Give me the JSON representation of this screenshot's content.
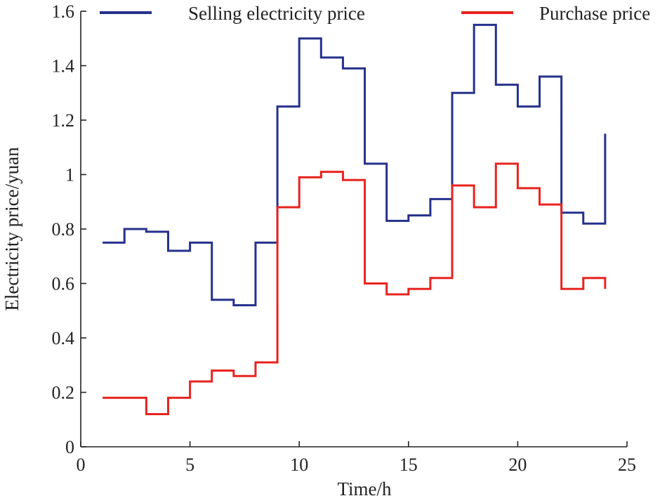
{
  "chart_data": {
    "type": "line",
    "step": true,
    "title": "",
    "xlabel": "Time/h",
    "ylabel": "Electricity price/yuan",
    "xlim": [
      0,
      25
    ],
    "ylim": [
      0,
      1.6
    ],
    "xticks": [
      0,
      5,
      10,
      15,
      20,
      25
    ],
    "yticks": [
      0,
      0.2,
      0.4,
      0.6,
      0.8,
      1,
      1.2,
      1.4,
      1.6
    ],
    "xtick_labels": [
      "0",
      "5",
      "10",
      "15",
      "20",
      "25"
    ],
    "ytick_labels": [
      "0",
      "0.2",
      "0.4",
      "0.6",
      "0.8",
      "1",
      "1.2",
      "1.4",
      "1.6"
    ],
    "grid": false,
    "legend_position": "top",
    "x": [
      1,
      2,
      3,
      4,
      5,
      6,
      7,
      8,
      9,
      10,
      11,
      12,
      13,
      14,
      15,
      16,
      17,
      18,
      19,
      20,
      21,
      22,
      23,
      24
    ],
    "series": [
      {
        "name": "Selling electricity price",
        "color": "#25318c",
        "values": [
          0.75,
          0.8,
          0.79,
          0.72,
          0.75,
          0.54,
          0.52,
          0.75,
          1.25,
          1.5,
          1.43,
          1.39,
          1.04,
          0.83,
          0.85,
          0.91,
          1.3,
          1.55,
          1.33,
          1.25,
          1.36,
          0.86,
          0.82,
          1.15
        ]
      },
      {
        "name": "Purchase price",
        "color": "#e8231f",
        "values": [
          0.18,
          0.18,
          0.12,
          0.18,
          0.24,
          0.28,
          0.26,
          0.31,
          0.88,
          0.99,
          1.01,
          0.98,
          0.6,
          0.56,
          0.58,
          0.62,
          0.96,
          0.88,
          1.04,
          0.95,
          0.89,
          0.58,
          0.62,
          0.58
        ]
      }
    ]
  }
}
